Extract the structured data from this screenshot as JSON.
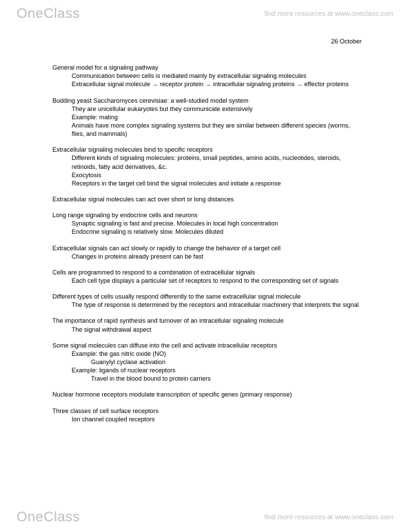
{
  "brand_one": "One",
  "brand_class": "Class",
  "tagline": "find more resources at www.oneclass.com",
  "date": "26 October",
  "sections": [
    {
      "h": "General model for a signaling pathway",
      "subs": [
        "Communication between cells is mediated mainly by extracellular signaling molecules",
        "Extracellular signal molecule → receptor protein → intracellular signaling proteins → effector proteins"
      ]
    },
    {
      "h": "Budding yeast Saccharomyces cerevisiae: a well-studied model system",
      "subs": [
        "They are unicellular eukaryotes but they communicate extensively",
        "Example: mating",
        "Animals have more complex signaling systems but they are similar between different species (worms, flies, and mammals)"
      ]
    },
    {
      "h": "Extracellular signaling molecules bind to specific receptors",
      "subs": [
        "Different kinds of signaling molecules: proteins, small peptides, amino acids, nucleotides, steroids, retinoids, fatty acid derivatives, &c.",
        "Exocytosis",
        "Receptors in the target cell bind the signal molecules and initiate a response"
      ]
    },
    {
      "h": "Extracellular signal molecules can act over short or long distances",
      "subs": []
    },
    {
      "h": "Long range signaling by endocrine cells and neurons",
      "subs": [
        "Synaptic signaling is fast and precise.  Molecules in local high concentration",
        "Endocrine signaling is relatively slow.  Molecules diluted"
      ]
    },
    {
      "h": "Extracellular signals can act slowly or rapidly to change the behavior of a target cell",
      "subs": [
        "Changes in proteins already present can be fast"
      ]
    },
    {
      "h": "Cells are programmed to respond to a combination of extracellular signals",
      "subs": [
        "Each cell type displays a particular set of receptors to respond to the corresponding set of signals"
      ]
    },
    {
      "h": "Different types of cells usually respond differently to the same extracellular signal molecule",
      "subs": [
        "The type of response is determined by the receptors and intracellular machinery that interprets the signal"
      ]
    },
    {
      "h": "The importance of rapid synthesis and turnover of an intracellular signaling molecule",
      "subs": [
        "The signal withdrawal aspect"
      ]
    },
    {
      "h": "Some signal molecules can diffuse into the cell and activate intracellular receptors",
      "subs": [
        "Example: the gas nitric oxide (NO)",
        {
          "sub2": "Guanylyl cyclase activation"
        },
        "Example: ligands of nuclear receptors",
        {
          "sub2": "Travel in the blood bound to protein carriers"
        }
      ]
    },
    {
      "h": "Nuclear hormone receptors modulate transcription of specific genes (primary response)",
      "subs": []
    },
    {
      "h": "Three classes of cell surface receptors",
      "subs": [
        "Ion channel coupled receptors"
      ]
    }
  ]
}
